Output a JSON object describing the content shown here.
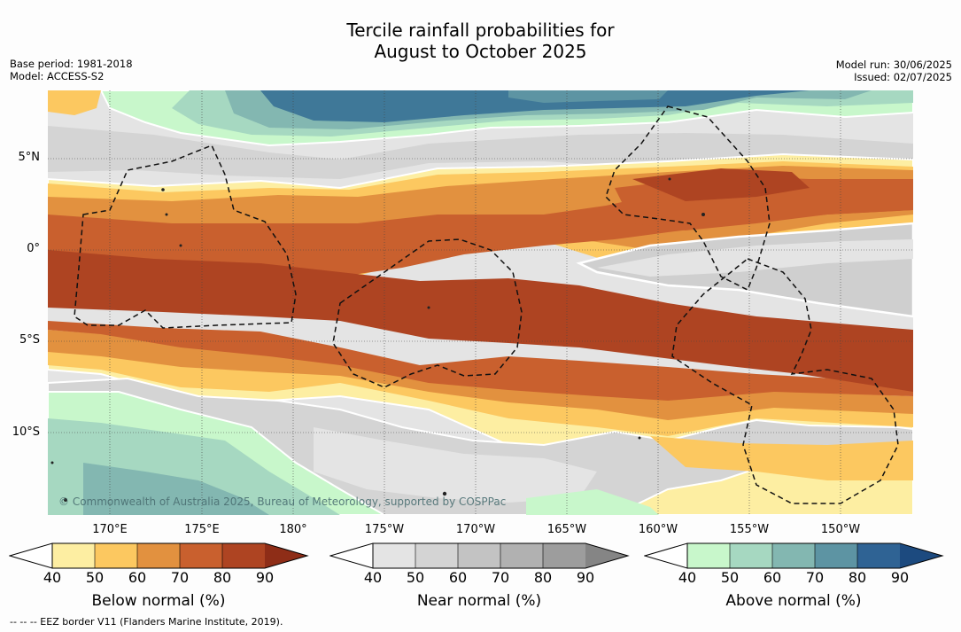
{
  "title_line1": "Tercile rainfall probabilities for",
  "title_line2": "August to October 2025",
  "base_period": "Base period: 1981-2018",
  "model": "Model: ACCESS-S2",
  "model_run": "Model run: 30/06/2025",
  "issued": "Issued: 02/07/2025",
  "lat_labels": [
    "5°N",
    "0°",
    "5°S",
    "10°S"
  ],
  "lon_labels": [
    "170°E",
    "175°E",
    "180°",
    "175°W",
    "170°W",
    "165°W",
    "160°W",
    "155°W",
    "150°W"
  ],
  "copyright": "© Commonwealth of Australia 2025, Bureau of Meteorology, supported by COSPPac",
  "footnote": "--  --  -- EEZ border V11 (Flanders Marine Institute, 2019).",
  "colorbars": [
    {
      "title": "Below normal (%)",
      "ticks": [
        "40",
        "50",
        "60",
        "70",
        "80",
        "90"
      ],
      "colors": [
        "#fdeea2",
        "#fcc860",
        "#e2913f",
        "#c9602e",
        "#ae4422",
        "#8e2d17"
      ]
    },
    {
      "title": "Near normal (%)",
      "ticks": [
        "40",
        "50",
        "60",
        "70",
        "80",
        "90"
      ],
      "colors": [
        "#e4e4e4",
        "#d4d4d4",
        "#c3c3c3",
        "#b1b1b1",
        "#9d9d9d",
        "#858585"
      ]
    },
    {
      "title": "Above normal (%)",
      "ticks": [
        "40",
        "50",
        "60",
        "70",
        "80",
        "90"
      ],
      "colors": [
        "#c8f7cb",
        "#a6d8c1",
        "#83b7b1",
        "#5d94a3",
        "#2f6394",
        "#1c4a7f"
      ]
    }
  ],
  "map_colors": {
    "brown_dark": "#ae4422",
    "brown": "#c9602e",
    "orange": "#e2913f",
    "yellow": "#fcc860",
    "pale_yellow": "#fdeea2",
    "grey_light": "#e4e4e4",
    "grey": "#cfcfcf",
    "mint": "#c8f7cb",
    "teal_light": "#a6d8c1",
    "teal": "#83b7b1",
    "blue_teal": "#5d94a3",
    "blue": "#3f7898"
  }
}
